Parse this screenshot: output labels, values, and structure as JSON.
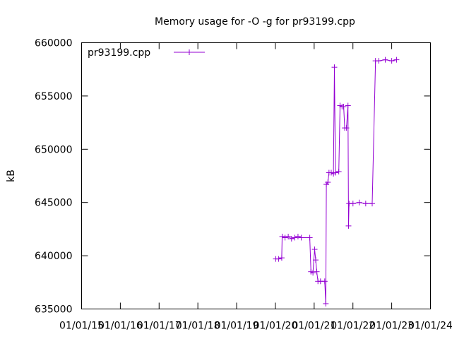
{
  "chart_data": {
    "type": "line",
    "title": "Memory usage for -O -g for pr93199.cpp",
    "xlabel": "",
    "ylabel": "kB",
    "ylim": [
      635000,
      660000
    ],
    "yticks": [
      635000,
      640000,
      645000,
      650000,
      655000,
      660000
    ],
    "xticks": [
      "01/01/15",
      "01/01/16",
      "01/01/17",
      "01/01/18",
      "01/01/19",
      "01/01/20",
      "01/01/21",
      "01/01/22",
      "01/01/23",
      "01/01/24"
    ],
    "xlim": [
      "2015-01-01",
      "2024-01-01"
    ],
    "grid": false,
    "legend_position": "top-left",
    "color": "#9400d3",
    "series": [
      {
        "name": "pr93199.cpp",
        "points": [
          [
            "2020-01-05",
            639700
          ],
          [
            "2020-02-01",
            639700
          ],
          [
            "2020-03-01",
            639800
          ],
          [
            "2020-03-05",
            641800
          ],
          [
            "2020-04-01",
            641700
          ],
          [
            "2020-05-01",
            641800
          ],
          [
            "2020-06-01",
            641600
          ],
          [
            "2020-07-01",
            641700
          ],
          [
            "2020-08-01",
            641800
          ],
          [
            "2020-09-01",
            641700
          ],
          [
            "2020-11-20",
            641700
          ],
          [
            "2020-12-01",
            638500
          ],
          [
            "2020-12-20",
            638400
          ],
          [
            "2021-01-05",
            640600
          ],
          [
            "2021-01-15",
            639600
          ],
          [
            "2021-01-25",
            638500
          ],
          [
            "2021-02-05",
            637600
          ],
          [
            "2021-03-01",
            637600
          ],
          [
            "2021-04-10",
            637600
          ],
          [
            "2021-04-20",
            635500
          ],
          [
            "2021-04-25",
            646700
          ],
          [
            "2021-05-10",
            646900
          ],
          [
            "2021-05-20",
            647800
          ],
          [
            "2021-06-10",
            647800
          ],
          [
            "2021-07-01",
            647700
          ],
          [
            "2021-07-10",
            657700
          ],
          [
            "2021-07-20",
            647800
          ],
          [
            "2021-08-20",
            647900
          ],
          [
            "2021-09-01",
            654100
          ],
          [
            "2021-09-20",
            654000
          ],
          [
            "2021-10-05",
            654000
          ],
          [
            "2021-10-15",
            652000
          ],
          [
            "2021-11-01",
            652000
          ],
          [
            "2021-11-15",
            654100
          ],
          [
            "2021-11-20",
            642800
          ],
          [
            "2021-11-25",
            644900
          ],
          [
            "2022-01-01",
            644900
          ],
          [
            "2022-03-01",
            645000
          ],
          [
            "2022-05-01",
            644900
          ],
          [
            "2022-07-01",
            644900
          ],
          [
            "2022-08-01",
            658300
          ],
          [
            "2022-09-01",
            658300
          ],
          [
            "2022-11-01",
            658400
          ],
          [
            "2023-01-01",
            658300
          ],
          [
            "2023-02-15",
            658400
          ]
        ]
      }
    ]
  }
}
